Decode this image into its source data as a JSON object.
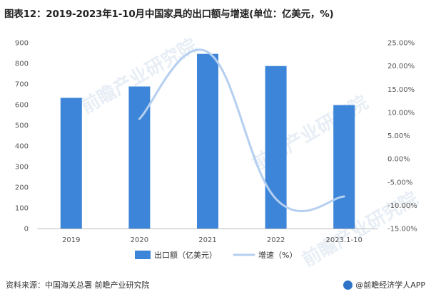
{
  "title": "图表12：2019-2023年1-10月中国家具的出口额与增速(单位：亿美元，%)",
  "source": "资料来源：中国海关总署 前瞻产业研究院",
  "credit": "@前瞻经济学人APP",
  "watermark": "前瞻产业研究院",
  "colors": {
    "bar": "#3d85d8",
    "line": "#b4cff0",
    "axis": "#bbbbbb"
  },
  "chart_data": {
    "type": "bar",
    "title": "图表12：2019-2023年1-10月中国家具的出口额与增速(单位：亿美元，%)",
    "categories": [
      "2019",
      "2020",
      "2021",
      "2022",
      "2023.1-10"
    ],
    "series": [
      {
        "name": "出口额（亿美元）",
        "type": "bar",
        "axis": "left",
        "values": [
          633,
          688,
          846,
          787,
          598
        ]
      },
      {
        "name": "增速（%）",
        "type": "line",
        "axis": "right",
        "values": [
          null,
          8.6,
          23.0,
          -8.6,
          -8.1
        ]
      }
    ],
    "y_left": {
      "range": [
        0,
        900
      ],
      "ticks": [
        "0",
        "100",
        "200",
        "300",
        "400",
        "500",
        "600",
        "700",
        "800",
        "900"
      ]
    },
    "y_right": {
      "range": [
        -15,
        25
      ],
      "ticks": [
        "-15.00%",
        "-10.00%",
        "-5.00%",
        "0.00%",
        "5.00%",
        "10.00%",
        "15.00%",
        "20.00%",
        "25.00%"
      ]
    },
    "grid": false,
    "legend_position": "bottom"
  }
}
